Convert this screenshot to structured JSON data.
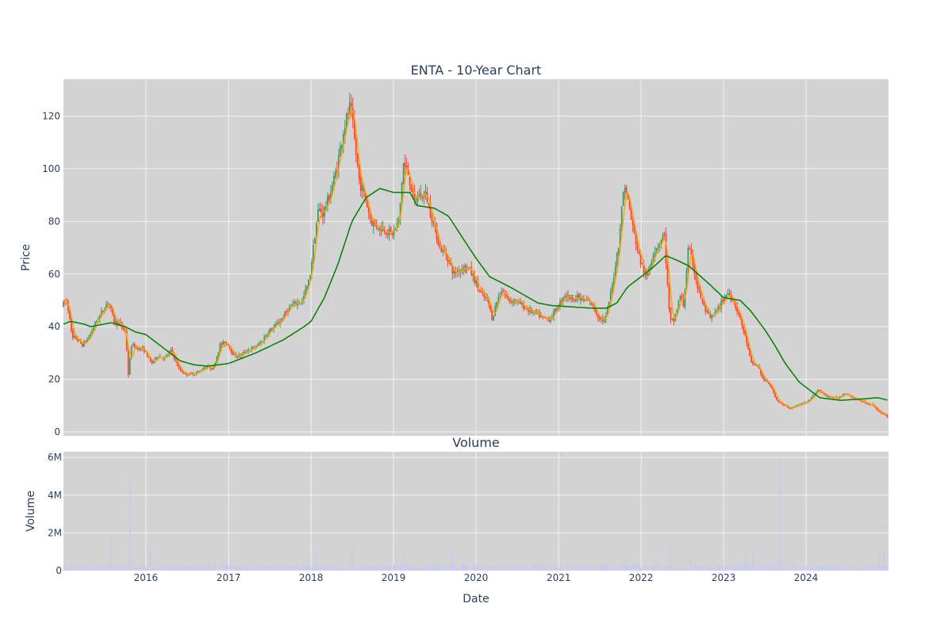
{
  "chart_data": [
    {
      "type": "candlestick",
      "title": "ENTA - 10-Year Chart",
      "xlabel": "",
      "ylabel": "Price",
      "x_range": [
        "2015-01-01",
        "2024-12-31"
      ],
      "ylim": [
        -1.5,
        134
      ],
      "y_ticks": [
        0,
        20,
        40,
        60,
        80,
        100,
        120
      ],
      "grid": true,
      "colors": {
        "increasing": "#3d9970",
        "decreasing": "#ff4136",
        "ma_short": "#ffa500",
        "ma_long": "#008000",
        "plot_bg": "#d3d3d3",
        "grid": "#f2f2f2"
      },
      "price_path": [
        [
          "2015-01-01",
          48
        ],
        [
          "2015-01-20",
          50
        ],
        [
          "2015-02-05",
          44
        ],
        [
          "2015-02-15",
          35
        ],
        [
          "2015-03-01",
          36
        ],
        [
          "2015-04-01",
          33
        ],
        [
          "2015-05-01",
          36
        ],
        [
          "2015-06-01",
          42
        ],
        [
          "2015-07-01",
          46
        ],
        [
          "2015-07-25",
          50
        ],
        [
          "2015-08-20",
          42
        ],
        [
          "2015-09-15",
          41
        ],
        [
          "2015-10-10",
          38
        ],
        [
          "2015-10-22",
          22
        ],
        [
          "2015-11-05",
          33
        ],
        [
          "2015-12-01",
          32
        ],
        [
          "2016-01-01",
          31
        ],
        [
          "2016-02-01",
          26
        ],
        [
          "2016-03-01",
          29
        ],
        [
          "2016-04-01",
          28
        ],
        [
          "2016-05-01",
          31
        ],
        [
          "2016-06-01",
          24
        ],
        [
          "2016-07-01",
          22
        ],
        [
          "2016-08-01",
          22
        ],
        [
          "2016-09-01",
          23
        ],
        [
          "2016-10-01",
          25
        ],
        [
          "2016-11-01",
          24
        ],
        [
          "2016-12-01",
          33
        ],
        [
          "2017-01-01",
          34
        ],
        [
          "2017-02-01",
          29
        ],
        [
          "2017-03-01",
          29
        ],
        [
          "2017-04-01",
          31
        ],
        [
          "2017-05-01",
          32
        ],
        [
          "2017-06-01",
          34
        ],
        [
          "2017-07-01",
          38
        ],
        [
          "2017-08-01",
          40
        ],
        [
          "2017-09-01",
          43
        ],
        [
          "2017-10-01",
          47
        ],
        [
          "2017-11-01",
          49
        ],
        [
          "2017-12-01",
          50
        ],
        [
          "2018-01-01",
          58
        ],
        [
          "2018-01-25",
          75
        ],
        [
          "2018-02-10",
          85
        ],
        [
          "2018-03-01",
          83
        ],
        [
          "2018-04-01",
          90
        ],
        [
          "2018-05-01",
          100
        ],
        [
          "2018-06-01",
          115
        ],
        [
          "2018-07-01",
          124
        ],
        [
          "2018-07-20",
          110
        ],
        [
          "2018-08-10",
          95
        ],
        [
          "2018-09-01",
          90
        ],
        [
          "2018-10-01",
          80
        ],
        [
          "2018-11-01",
          78
        ],
        [
          "2018-12-01",
          77
        ],
        [
          "2019-01-01",
          75
        ],
        [
          "2019-02-01",
          80
        ],
        [
          "2019-02-20",
          102
        ],
        [
          "2019-03-15",
          98
        ],
        [
          "2019-04-10",
          87
        ],
        [
          "2019-05-01",
          90
        ],
        [
          "2019-06-01",
          90
        ],
        [
          "2019-07-01",
          80
        ],
        [
          "2019-08-01",
          70
        ],
        [
          "2019-09-01",
          67
        ],
        [
          "2019-10-01",
          60
        ],
        [
          "2019-11-01",
          62
        ],
        [
          "2019-12-01",
          63
        ],
        [
          "2020-01-01",
          58
        ],
        [
          "2020-02-01",
          52
        ],
        [
          "2020-03-01",
          50
        ],
        [
          "2020-03-20",
          43
        ],
        [
          "2020-04-10",
          50
        ],
        [
          "2020-05-01",
          54
        ],
        [
          "2020-06-01",
          50
        ],
        [
          "2020-07-01",
          50
        ],
        [
          "2020-08-01",
          48
        ],
        [
          "2020-09-01",
          46
        ],
        [
          "2020-10-01",
          45
        ],
        [
          "2020-11-01",
          43
        ],
        [
          "2020-12-01",
          43
        ],
        [
          "2021-01-01",
          47
        ],
        [
          "2021-02-01",
          52
        ],
        [
          "2021-03-01",
          51
        ],
        [
          "2021-04-01",
          51
        ],
        [
          "2021-05-01",
          50
        ],
        [
          "2021-06-01",
          49
        ],
        [
          "2021-07-01",
          44
        ],
        [
          "2021-08-01",
          42
        ],
        [
          "2021-09-01",
          55
        ],
        [
          "2021-10-01",
          72
        ],
        [
          "2021-10-25",
          95
        ],
        [
          "2021-11-15",
          86
        ],
        [
          "2021-12-01",
          78
        ],
        [
          "2022-01-01",
          66
        ],
        [
          "2022-02-01",
          58
        ],
        [
          "2022-03-01",
          68
        ],
        [
          "2022-04-01",
          72
        ],
        [
          "2022-04-20",
          76
        ],
        [
          "2022-05-15",
          42
        ],
        [
          "2022-06-01",
          42
        ],
        [
          "2022-07-01",
          52
        ],
        [
          "2022-07-15",
          48
        ],
        [
          "2022-08-05",
          70
        ],
        [
          "2022-08-25",
          64
        ],
        [
          "2022-09-15",
          55
        ],
        [
          "2022-10-15",
          47
        ],
        [
          "2022-11-10",
          43
        ],
        [
          "2022-12-10",
          46
        ],
        [
          "2023-01-10",
          51
        ],
        [
          "2023-02-01",
          53
        ],
        [
          "2023-02-20",
          50
        ],
        [
          "2023-03-15",
          45
        ],
        [
          "2023-04-15",
          36
        ],
        [
          "2023-05-10",
          26
        ],
        [
          "2023-06-10",
          25
        ],
        [
          "2023-07-01",
          20
        ],
        [
          "2023-08-01",
          18
        ],
        [
          "2023-09-01",
          12
        ],
        [
          "2023-10-01",
          10
        ],
        [
          "2023-11-01",
          9
        ],
        [
          "2023-12-01",
          10
        ],
        [
          "2024-01-01",
          11
        ],
        [
          "2024-02-01",
          13
        ],
        [
          "2024-03-01",
          16
        ],
        [
          "2024-04-01",
          14
        ],
        [
          "2024-05-01",
          13
        ],
        [
          "2024-06-01",
          13
        ],
        [
          "2024-07-01",
          15
        ],
        [
          "2024-08-01",
          13
        ],
        [
          "2024-09-01",
          12
        ],
        [
          "2024-10-01",
          11
        ],
        [
          "2024-11-01",
          10
        ],
        [
          "2024-12-05",
          7
        ],
        [
          "2024-12-31",
          6
        ]
      ],
      "ma_long_path": [
        [
          "2015-01-01",
          41
        ],
        [
          "2015-02-01",
          42
        ],
        [
          "2015-04-01",
          41
        ],
        [
          "2015-05-01",
          40
        ],
        [
          "2015-08-01",
          41.5
        ],
        [
          "2015-10-01",
          40
        ],
        [
          "2015-11-15",
          38
        ],
        [
          "2016-01-01",
          37
        ],
        [
          "2016-04-01",
          31
        ],
        [
          "2016-06-01",
          27
        ],
        [
          "2016-08-01",
          25.5
        ],
        [
          "2016-10-01",
          25
        ],
        [
          "2017-01-01",
          26
        ],
        [
          "2017-05-01",
          30
        ],
        [
          "2017-09-01",
          35
        ],
        [
          "2017-12-01",
          40
        ],
        [
          "2018-01-01",
          42
        ],
        [
          "2018-03-01",
          51
        ],
        [
          "2018-05-01",
          64
        ],
        [
          "2018-07-01",
          80
        ],
        [
          "2018-09-01",
          89
        ],
        [
          "2018-11-01",
          92.5
        ],
        [
          "2019-01-01",
          91
        ],
        [
          "2019-03-15",
          91
        ],
        [
          "2019-04-15",
          86
        ],
        [
          "2019-07-01",
          85
        ],
        [
          "2019-09-01",
          82
        ],
        [
          "2019-11-01",
          74
        ],
        [
          "2020-01-01",
          66
        ],
        [
          "2020-03-01",
          59
        ],
        [
          "2020-06-01",
          55
        ],
        [
          "2020-08-01",
          52
        ],
        [
          "2020-10-01",
          49
        ],
        [
          "2020-12-01",
          48
        ],
        [
          "2021-03-01",
          47.5
        ],
        [
          "2021-06-01",
          47
        ],
        [
          "2021-08-01",
          47
        ],
        [
          "2021-09-15",
          49
        ],
        [
          "2021-11-01",
          55
        ],
        [
          "2022-01-01",
          59
        ],
        [
          "2022-03-01",
          63
        ],
        [
          "2022-04-20",
          67
        ],
        [
          "2022-06-15",
          65
        ],
        [
          "2022-08-01",
          63
        ],
        [
          "2022-11-01",
          56
        ],
        [
          "2023-01-01",
          51
        ],
        [
          "2023-03-15",
          50
        ],
        [
          "2023-05-01",
          46
        ],
        [
          "2023-07-01",
          39
        ],
        [
          "2023-08-15",
          33
        ],
        [
          "2023-10-01",
          26
        ],
        [
          "2023-12-01",
          19
        ],
        [
          "2024-03-01",
          13
        ],
        [
          "2024-06-01",
          12
        ],
        [
          "2024-09-01",
          12.5
        ],
        [
          "2024-11-15",
          13
        ],
        [
          "2024-12-31",
          12
        ]
      ]
    },
    {
      "type": "bar",
      "title": "Volume",
      "xlabel": "Date",
      "ylabel": "Volume",
      "ylim": [
        0,
        6300000
      ],
      "y_ticks": [
        {
          "value": 0,
          "label": "0"
        },
        {
          "value": 2000000,
          "label": "2M"
        },
        {
          "value": 4000000,
          "label": "4M"
        },
        {
          "value": 6000000,
          "label": "6M"
        }
      ],
      "x_ticks": [
        {
          "date": "2016-01-01",
          "label": "2016"
        },
        {
          "date": "2017-01-01",
          "label": "2017"
        },
        {
          "date": "2018-01-01",
          "label": "2018"
        },
        {
          "date": "2019-01-01",
          "label": "2019"
        },
        {
          "date": "2020-01-01",
          "label": "2020"
        },
        {
          "date": "2021-01-01",
          "label": "2021"
        },
        {
          "date": "2022-01-01",
          "label": "2022"
        },
        {
          "date": "2023-01-01",
          "label": "2023"
        },
        {
          "date": "2024-01-01",
          "label": "2024"
        }
      ],
      "bar_color": "#c9c9f0",
      "baseline_volume": 150000,
      "volume_spikes": [
        [
          "2015-10-22",
          4900000
        ],
        [
          "2015-08-01",
          1800000
        ],
        [
          "2016-01-20",
          1200000
        ],
        [
          "2018-07-01",
          1300000
        ],
        [
          "2018-01-25",
          1000000
        ],
        [
          "2019-02-20",
          900000
        ],
        [
          "2019-09-15",
          1050000
        ],
        [
          "2021-10-25",
          800000
        ],
        [
          "2022-05-15",
          1450000
        ],
        [
          "2022-08-05",
          700000
        ],
        [
          "2023-04-10",
          900000
        ],
        [
          "2023-05-10",
          1050000
        ],
        [
          "2023-09-05",
          6000000
        ],
        [
          "2024-11-20",
          950000
        ],
        [
          "2024-12-10",
          1000000
        ]
      ]
    }
  ]
}
